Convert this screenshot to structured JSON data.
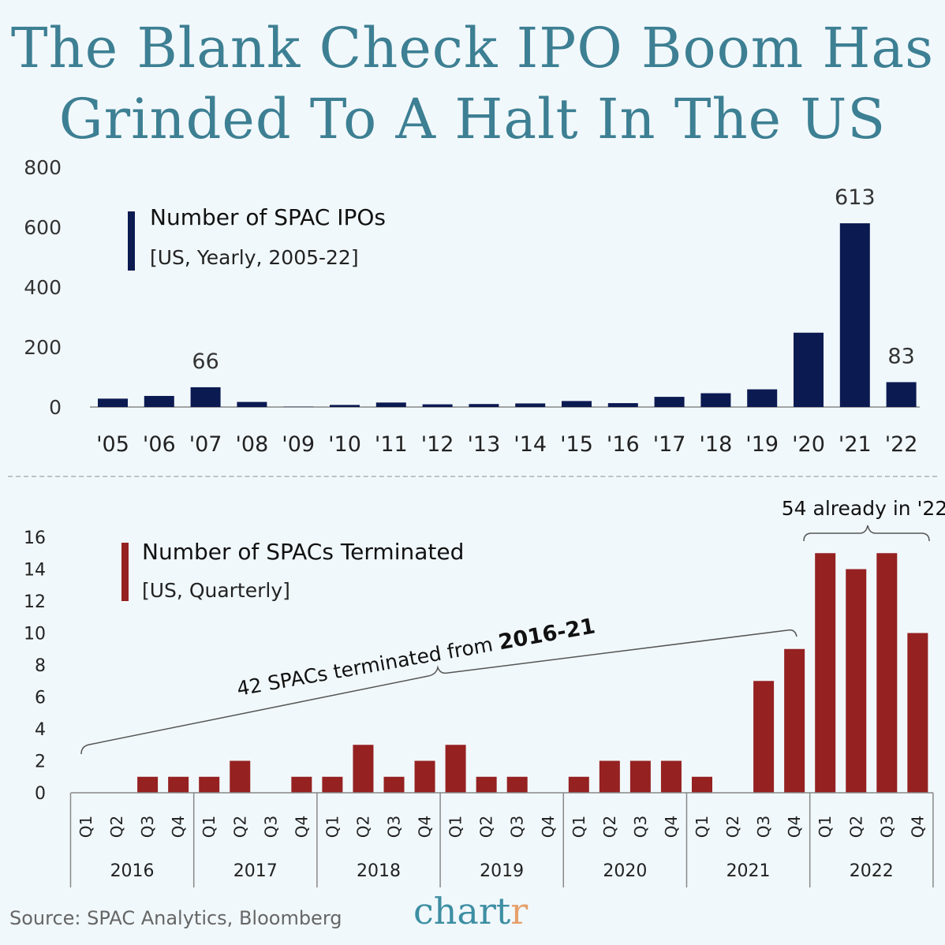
{
  "title_line1": "The Blank Check IPO Boom Has",
  "title_line2": "Grinded To A Halt In The US",
  "colors": {
    "title": "#3d7f93",
    "top_bars": "#0c1a52",
    "bottom_bars": "#952121",
    "logo_main": "#3d8ea3",
    "logo_accent": "#e6a06b"
  },
  "chart_data": [
    {
      "type": "bar",
      "legend_title": "Number of SPAC IPOs",
      "legend_subtitle": "[US, Yearly, 2005-22]",
      "categories": [
        "'05",
        "'06",
        "'07",
        "'08",
        "'09",
        "'10",
        "'11",
        "'12",
        "'13",
        "'14",
        "'15",
        "'16",
        "'17",
        "'18",
        "'19",
        "'20",
        "'21",
        "'22"
      ],
      "values": [
        28,
        37,
        66,
        17,
        1,
        7,
        15,
        9,
        10,
        12,
        20,
        13,
        34,
        46,
        59,
        248,
        613,
        83
      ],
      "data_labels": {
        "2": "66",
        "16": "613",
        "17": "83"
      },
      "yticks": [
        0,
        200,
        400,
        600,
        800
      ],
      "ylim": [
        0,
        800
      ],
      "xlabel": "",
      "ylabel": ""
    },
    {
      "type": "bar",
      "legend_title": "Number of SPACs Terminated",
      "legend_subtitle": "[US, Quarterly]",
      "years": [
        "2016",
        "2017",
        "2018",
        "2019",
        "2020",
        "2021",
        "2022"
      ],
      "quarters": [
        "Q1",
        "Q2",
        "Q3",
        "Q4"
      ],
      "values": [
        0,
        0,
        1,
        1,
        1,
        2,
        0,
        1,
        1,
        3,
        1,
        2,
        3,
        1,
        1,
        0,
        1,
        2,
        2,
        2,
        1,
        0,
        7,
        9,
        15,
        14,
        15,
        10
      ],
      "yticks": [
        0,
        2,
        4,
        6,
        8,
        10,
        12,
        14,
        16
      ],
      "ylim": [
        0,
        16
      ],
      "annotations": {
        "range_2016_21": {
          "prefix": "42 SPACs terminated from ",
          "bold": "2016-21"
        },
        "range_2022": "54 already in '22"
      },
      "xlabel": "",
      "ylabel": ""
    }
  ],
  "footer": {
    "source": "Source: SPAC Analytics, Bloomberg",
    "logo_main": "chart",
    "logo_accent": "r"
  }
}
